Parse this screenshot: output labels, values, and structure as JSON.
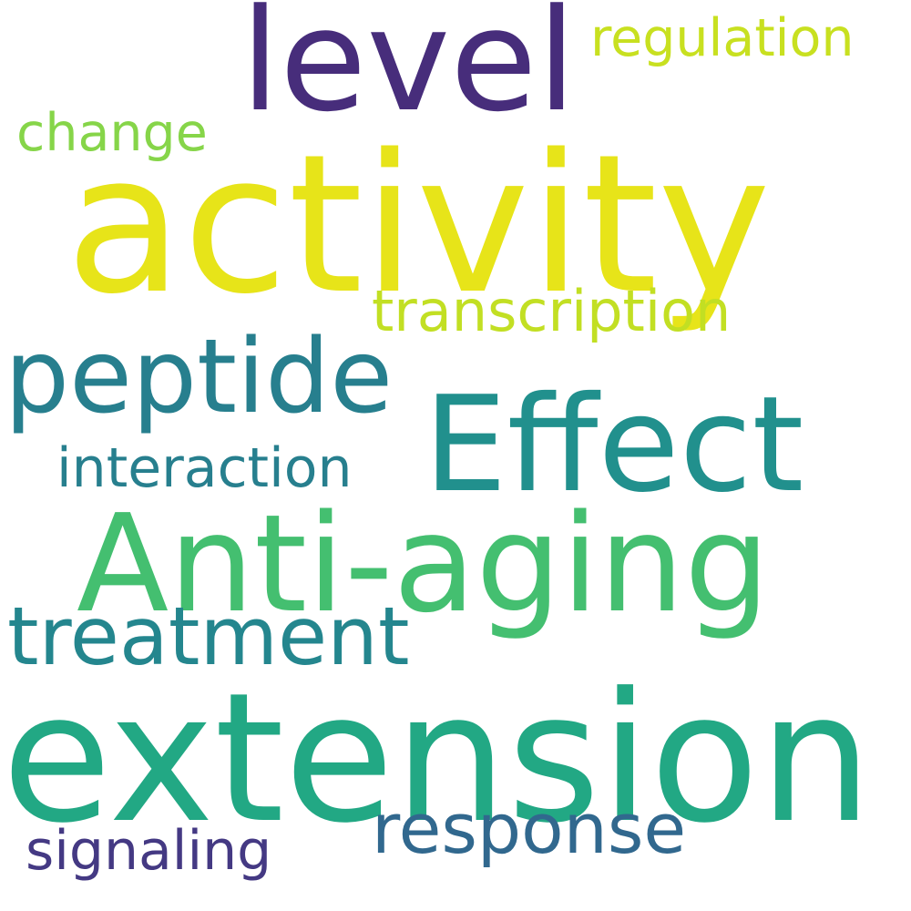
{
  "words": [
    {
      "key": "activity",
      "text": "activity",
      "color": "#e7e419"
    },
    {
      "key": "extension",
      "text": "extension",
      "color": "#22a884"
    },
    {
      "key": "level",
      "text": "level",
      "color": "#472d7b"
    },
    {
      "key": "effect",
      "text": "Effect",
      "color": "#21908d"
    },
    {
      "key": "antiaging",
      "text": "Anti-aging",
      "color": "#44bf70"
    },
    {
      "key": "peptide",
      "text": "peptide",
      "color": "#277f8e"
    },
    {
      "key": "treatment",
      "text": "treatment",
      "color": "#24868e"
    },
    {
      "key": "response",
      "text": "response",
      "color": "#31688e"
    },
    {
      "key": "transcription",
      "text": "transcription",
      "color": "#c2df23"
    },
    {
      "key": "interaction",
      "text": "interaction",
      "color": "#277f8e"
    },
    {
      "key": "regulation",
      "text": "regulation",
      "color": "#c8e020"
    },
    {
      "key": "change",
      "text": "change",
      "color": "#86d549"
    },
    {
      "key": "signaling",
      "text": "signaling",
      "color": "#443983"
    }
  ]
}
